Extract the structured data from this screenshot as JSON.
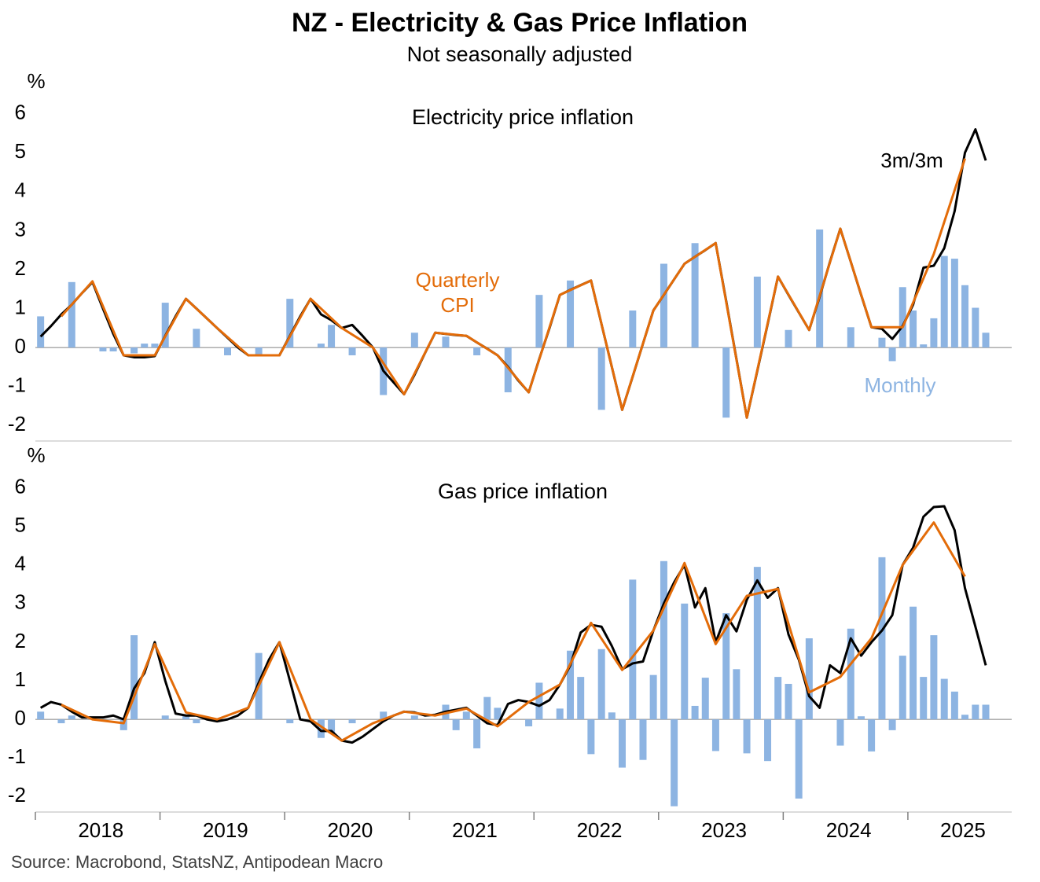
{
  "title": "NZ - Electricity & Gas Price Inflation",
  "subtitle": "Not seasonally adjusted",
  "source": "Source: Macrobond, StatsNZ, Antipodean Macro",
  "chart_data": [
    {
      "type": "combo",
      "title": "Electricity price inflation",
      "y_label": "%",
      "xlim": [
        2018,
        2025.833
      ],
      "ylim": [
        -2.4,
        6.6
      ],
      "yticks": [
        -2,
        -1,
        0,
        1,
        2,
        3,
        4,
        5,
        6
      ],
      "x": [
        2018.042,
        2018.125,
        2018.208,
        2018.292,
        2018.375,
        2018.458,
        2018.542,
        2018.625,
        2018.708,
        2018.792,
        2018.875,
        2018.958,
        2019.042,
        2019.125,
        2019.208,
        2019.292,
        2019.375,
        2019.458,
        2019.542,
        2019.625,
        2019.708,
        2019.792,
        2019.875,
        2019.958,
        2020.042,
        2020.125,
        2020.208,
        2020.292,
        2020.375,
        2020.458,
        2020.542,
        2020.625,
        2020.708,
        2020.792,
        2020.875,
        2020.958,
        2021.042,
        2021.125,
        2021.208,
        2021.292,
        2021.375,
        2021.458,
        2021.542,
        2021.625,
        2021.708,
        2021.792,
        2021.875,
        2021.958,
        2022.042,
        2022.125,
        2022.208,
        2022.292,
        2022.375,
        2022.458,
        2022.542,
        2022.625,
        2022.708,
        2022.792,
        2022.875,
        2022.958,
        2023.042,
        2023.125,
        2023.208,
        2023.292,
        2023.375,
        2023.458,
        2023.542,
        2023.625,
        2023.708,
        2023.792,
        2023.875,
        2023.958,
        2024.042,
        2024.125,
        2024.208,
        2024.292,
        2024.375,
        2024.458,
        2024.542,
        2024.625,
        2024.708,
        2024.792,
        2024.875,
        2024.958,
        2025.042,
        2025.125,
        2025.208,
        2025.292,
        2025.375,
        2025.458,
        2025.542,
        2025.625
      ],
      "series": [
        {
          "name": "Monthly",
          "type": "bar",
          "color": "#8db4e2",
          "values": [
            0.8,
            0,
            0,
            1.68,
            0,
            0,
            -0.1,
            -0.1,
            0,
            -0.15,
            0.1,
            0.1,
            1.15,
            0,
            0,
            0.48,
            0,
            0,
            -0.2,
            0,
            0,
            -0.2,
            0,
            0,
            1.25,
            0,
            0,
            0.1,
            0.58,
            0,
            -0.2,
            0,
            0,
            -1.22,
            0,
            0,
            0.38,
            0,
            0,
            0.28,
            0,
            0,
            -0.2,
            0,
            0,
            -1.15,
            0,
            0,
            1.35,
            0,
            0,
            1.72,
            0,
            0,
            -1.6,
            0,
            0,
            0.95,
            0,
            0,
            2.15,
            0,
            0,
            2.68,
            0,
            0,
            -1.8,
            0,
            0,
            1.82,
            0,
            0,
            0.45,
            0,
            0,
            3.03,
            0,
            0,
            0.52,
            0,
            0,
            0.25,
            -0.35,
            1.55,
            0.95,
            0.08,
            0.75,
            2.35,
            2.28,
            1.6,
            1.02,
            0.38
          ]
        },
        {
          "name": "3m/3m",
          "type": "line",
          "color": "#000000",
          "values": [
            0.28,
            0.55,
            0.85,
            1.1,
            1.4,
            1.68,
            1.0,
            0.35,
            -0.2,
            -0.25,
            -0.25,
            -0.22,
            0.3,
            0.8,
            1.25,
            1.0,
            0.75,
            0.5,
            0.25,
            0.0,
            -0.2,
            -0.2,
            -0.2,
            -0.2,
            0.3,
            0.8,
            1.25,
            0.85,
            0.7,
            0.5,
            0.58,
            0.3,
            0.0,
            -0.6,
            -0.9,
            -1.2,
            -0.7,
            -0.15,
            0.38,
            0.35,
            0.32,
            0.3,
            0.13,
            -0.03,
            -0.2,
            -0.5,
            -0.85,
            -1.15,
            -0.3,
            0.5,
            1.35,
            1.48,
            1.6,
            1.72,
            0.6,
            -0.5,
            -1.6,
            -0.75,
            0.1,
            0.95,
            1.35,
            1.75,
            2.15,
            2.33,
            2.5,
            2.68,
            1.2,
            -0.3,
            -1.8,
            -0.6,
            0.6,
            1.82,
            1.35,
            0.9,
            0.45,
            1.3,
            2.2,
            3.05,
            2.2,
            1.35,
            0.52,
            0.48,
            0.22,
            0.55,
            1.1,
            2.05,
            2.1,
            2.55,
            3.5,
            5.0,
            5.6,
            4.8
          ]
        },
        {
          "name": "Quarterly CPI",
          "type": "line",
          "color": "#e36c09",
          "x": [
            2018.208,
            2018.458,
            2018.708,
            2018.958,
            2019.208,
            2019.458,
            2019.708,
            2019.958,
            2020.208,
            2020.458,
            2020.708,
            2020.958,
            2021.208,
            2021.458,
            2021.708,
            2021.958,
            2022.208,
            2022.458,
            2022.708,
            2022.958,
            2023.208,
            2023.458,
            2023.708,
            2023.958,
            2024.208,
            2024.458,
            2024.708,
            2024.958,
            2025.208,
            2025.458
          ],
          "values": [
            0.8,
            1.7,
            -0.2,
            -0.2,
            1.25,
            0.5,
            -0.2,
            -0.2,
            1.25,
            0.5,
            0.0,
            -1.2,
            0.38,
            0.3,
            -0.2,
            -1.15,
            1.35,
            1.72,
            -1.6,
            0.95,
            2.15,
            2.68,
            -1.8,
            1.82,
            0.45,
            3.05,
            0.52,
            0.52,
            2.4,
            4.85
          ]
        }
      ]
    },
    {
      "type": "combo",
      "title": "Gas price inflation",
      "y_label": "%",
      "xlim": [
        2018,
        2025.833
      ],
      "ylim": [
        -2.4,
        6.6
      ],
      "yticks": [
        -2,
        -1,
        0,
        1,
        2,
        3,
        4,
        5,
        6
      ],
      "xticks": [
        2018,
        2019,
        2020,
        2021,
        2022,
        2023,
        2024,
        2025
      ],
      "x": [
        2018.042,
        2018.125,
        2018.208,
        2018.292,
        2018.375,
        2018.458,
        2018.542,
        2018.625,
        2018.708,
        2018.792,
        2018.875,
        2018.958,
        2019.042,
        2019.125,
        2019.208,
        2019.292,
        2019.375,
        2019.458,
        2019.542,
        2019.625,
        2019.708,
        2019.792,
        2019.875,
        2019.958,
        2020.042,
        2020.125,
        2020.208,
        2020.292,
        2020.375,
        2020.458,
        2020.542,
        2020.625,
        2020.708,
        2020.792,
        2020.875,
        2020.958,
        2021.042,
        2021.125,
        2021.208,
        2021.292,
        2021.375,
        2021.458,
        2021.542,
        2021.625,
        2021.708,
        2021.792,
        2021.875,
        2021.958,
        2022.042,
        2022.125,
        2022.208,
        2022.292,
        2022.375,
        2022.458,
        2022.542,
        2022.625,
        2022.708,
        2022.792,
        2022.875,
        2022.958,
        2023.042,
        2023.125,
        2023.208,
        2023.292,
        2023.375,
        2023.458,
        2023.542,
        2023.625,
        2023.708,
        2023.792,
        2023.875,
        2023.958,
        2024.042,
        2024.125,
        2024.208,
        2024.292,
        2024.375,
        2024.458,
        2024.542,
        2024.625,
        2024.708,
        2024.792,
        2024.875,
        2024.958,
        2025.042,
        2025.125,
        2025.208,
        2025.292,
        2025.375,
        2025.458,
        2025.542,
        2025.625
      ],
      "series": [
        {
          "type": "bar",
          "color": "#8db4e2",
          "values": [
            0.2,
            0,
            -0.1,
            0.1,
            0,
            0,
            0,
            0,
            -0.28,
            2.18,
            0,
            0,
            0.1,
            0,
            0.1,
            -0.1,
            0,
            0,
            0,
            0,
            0,
            1.72,
            0,
            0,
            -0.1,
            0,
            0,
            -0.48,
            -0.35,
            0,
            -0.1,
            0,
            0,
            0.2,
            0,
            0,
            0.1,
            0,
            0,
            0.38,
            -0.28,
            0.2,
            -0.75,
            0.58,
            0.3,
            0,
            0,
            -0.18,
            0.95,
            0,
            0.28,
            1.78,
            1.1,
            -0.9,
            1.82,
            0.18,
            -1.25,
            3.62,
            -1.05,
            1.15,
            4.1,
            -2.25,
            3.0,
            0.35,
            1.08,
            -0.82,
            2.75,
            1.3,
            -0.88,
            3.95,
            -1.08,
            1.1,
            0.92,
            -2.05,
            2.1,
            0,
            0,
            -0.68,
            2.35,
            0.08,
            -0.83,
            4.2,
            -0.28,
            1.65,
            2.92,
            1.1,
            2.18,
            1.05,
            0.72,
            0.12,
            0.38,
            0.38
          ]
        },
        {
          "type": "line",
          "color": "#000000",
          "values": [
            0.3,
            0.45,
            0.38,
            0.2,
            0.05,
            0.05,
            0.05,
            0.1,
            0.0,
            0.8,
            1.2,
            2.0,
            1.0,
            0.15,
            0.1,
            0.1,
            0.0,
            -0.05,
            0.0,
            0.1,
            0.3,
            0.95,
            1.55,
            2.0,
            1.0,
            0.0,
            -0.05,
            -0.3,
            -0.3,
            -0.55,
            -0.6,
            -0.45,
            -0.25,
            -0.05,
            0.1,
            0.2,
            0.18,
            0.1,
            0.12,
            0.2,
            0.25,
            0.3,
            0.1,
            -0.1,
            -0.15,
            0.4,
            0.5,
            0.45,
            0.35,
            0.5,
            0.9,
            1.4,
            2.25,
            2.45,
            2.4,
            1.9,
            1.3,
            1.45,
            1.5,
            2.3,
            3.0,
            3.55,
            4.0,
            2.9,
            3.4,
            2.0,
            2.7,
            2.28,
            3.1,
            3.6,
            3.15,
            3.4,
            2.2,
            1.55,
            0.6,
            0.3,
            1.4,
            1.2,
            2.1,
            1.65,
            2.0,
            2.3,
            2.7,
            4.0,
            4.45,
            5.25,
            5.5,
            5.52,
            4.9,
            3.4,
            2.4,
            1.4
          ]
        },
        {
          "type": "line",
          "color": "#e36c09",
          "x": [
            2018.208,
            2018.458,
            2018.708,
            2018.958,
            2019.208,
            2019.458,
            2019.708,
            2019.958,
            2020.208,
            2020.458,
            2020.708,
            2020.958,
            2021.208,
            2021.458,
            2021.708,
            2021.958,
            2022.208,
            2022.458,
            2022.708,
            2022.958,
            2023.208,
            2023.458,
            2023.708,
            2023.958,
            2024.208,
            2024.458,
            2024.708,
            2024.958,
            2025.208,
            2025.458
          ],
          "values": [
            0.38,
            0.0,
            -0.1,
            1.95,
            0.18,
            0.0,
            0.3,
            2.0,
            0.0,
            -0.55,
            -0.1,
            0.2,
            0.1,
            0.28,
            -0.18,
            0.45,
            0.9,
            2.5,
            1.28,
            2.3,
            4.05,
            1.95,
            3.2,
            3.38,
            0.7,
            1.1,
            2.1,
            4.0,
            5.1,
            3.7
          ]
        }
      ]
    }
  ]
}
